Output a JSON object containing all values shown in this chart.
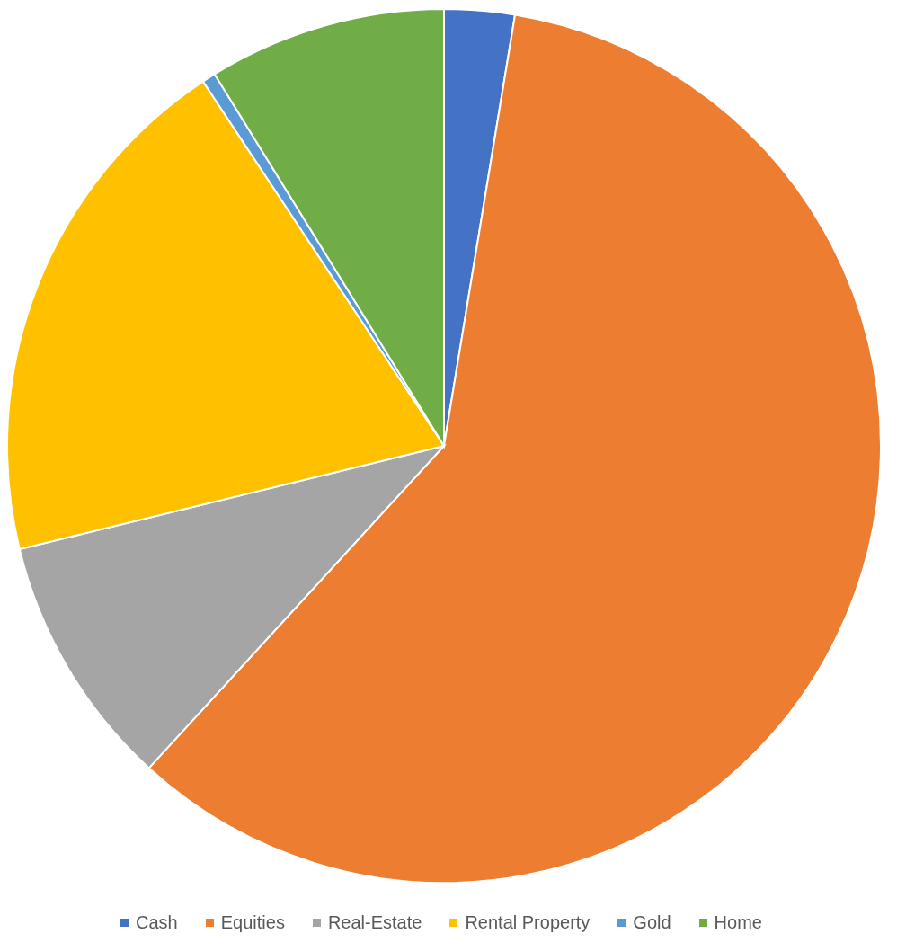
{
  "chart_data": {
    "type": "pie",
    "categories": [
      "Cash",
      "Equities",
      "Real-Estate",
      "Rental Property",
      "Gold",
      "Home"
    ],
    "values": [
      2.6,
      59.2,
      9.4,
      19.5,
      0.5,
      8.8
    ],
    "colors": [
      "#4472c4",
      "#ed7d31",
      "#a5a5a5",
      "#ffc000",
      "#5b9bd5",
      "#70ad47"
    ],
    "legend": "bottom"
  }
}
